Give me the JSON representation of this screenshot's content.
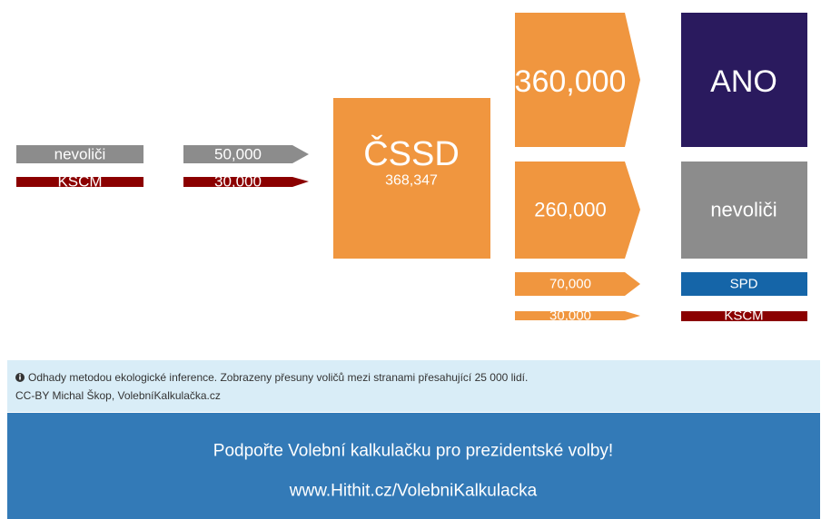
{
  "sources": [
    {
      "label": "nevoliči"
    },
    {
      "label": "KSČM"
    }
  ],
  "inflows": [
    {
      "label": "50,000"
    },
    {
      "label": "30,000"
    }
  ],
  "center": {
    "label": "ČSSD",
    "total": "368,347"
  },
  "outflows": [
    {
      "label": "360,000"
    },
    {
      "label": "260,000"
    },
    {
      "label": "70,000"
    },
    {
      "label": "30,000"
    }
  ],
  "targets": [
    {
      "label": "ANO"
    },
    {
      "label": "nevoliči"
    },
    {
      "label": "SPD"
    },
    {
      "label": "KSČM"
    }
  ],
  "note": {
    "text": "Odhady metodou ekologické inference. Zobrazeny přesuny voličů mezi stranami přesahující 25 000 lidí.",
    "credit": "CC-BY Michal Škop, VolebníKalkulačka.cz"
  },
  "footer": {
    "appeal": "Podpořte Volební kalkulačku pro prezidentské volby!",
    "link": "www.Hithit.cz/VolebniKalkulacka"
  }
}
